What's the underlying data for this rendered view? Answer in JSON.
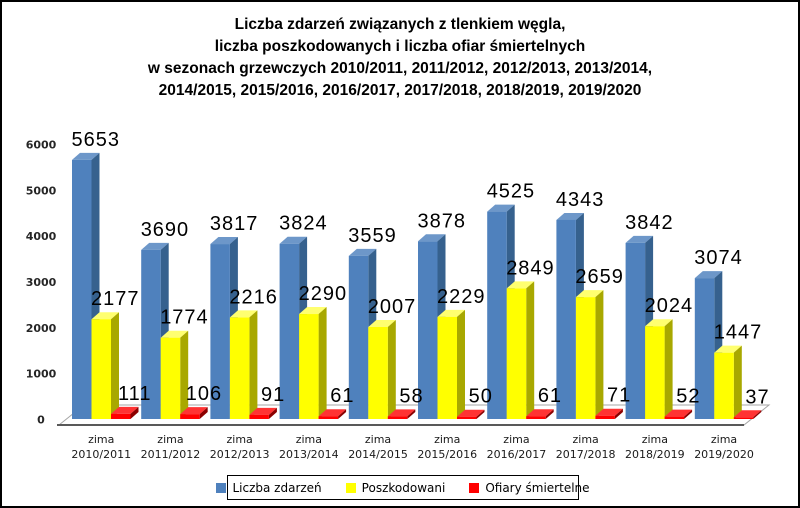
{
  "frame": {
    "background": "#FFFFFF",
    "border_color": "#000000"
  },
  "title": {
    "lines": [
      "Liczba zdarzeń związanych z tlenkiem węgla,",
      "liczba poszkodowanych i liczba ofiar śmiertelnych",
      "w sezonach grzewczych 2010/2011, 2011/2012, 2012/2013, 2013/2014,",
      "2014/2015, 2015/2016, 2016/2017, 2017/2018, 2018/2019, 2019/2020"
    ]
  },
  "chart_data": {
    "type": "bar",
    "style": "3d-clustered-column",
    "title": "Liczba zdarzeń związanych z tlenkiem węgla, liczba poszkodowanych i liczba ofiar śmiertelnych w sezonach grzewczych 2010/2011, 2011/2012, 2012/2013, 2013/2014, 2014/2015, 2015/2016, 2016/2017, 2017/2018, 2018/2019, 2019/2020",
    "categories_prefix": "zima",
    "categories": [
      "2010/2011",
      "2011/2012",
      "2012/2013",
      "2013/2014",
      "2014/2015",
      "2015/2016",
      "2016/2017",
      "2017/2018",
      "2018/2019",
      "2019/2020"
    ],
    "series": [
      {
        "key": "liczba-zdarzen",
        "name": "Liczba zdarzeń",
        "color": "#4F81BD",
        "color_top": "#6D97C9",
        "color_side": "#36618E",
        "values": [
          5653,
          3690,
          3817,
          3824,
          3559,
          3878,
          4525,
          4343,
          3842,
          3074
        ]
      },
      {
        "key": "poszkodowani",
        "name": "Poszkodowani",
        "color": "#FFFF00",
        "color_top": "#FFFF70",
        "color_side": "#A8A800",
        "values": [
          2177,
          1774,
          2216,
          2290,
          2007,
          2229,
          2849,
          2659,
          2024,
          1447
        ]
      },
      {
        "key": "ofiary-smiertelne",
        "name": "Ofiary śmiertelne",
        "color": "#FF0000",
        "color_top": "#FF3333",
        "color_side": "#8C0000",
        "values": [
          111,
          106,
          91,
          61,
          58,
          50,
          61,
          71,
          52,
          37
        ]
      }
    ],
    "xlabel": "",
    "ylabel": "",
    "ylim": [
      0,
      6000
    ],
    "yticks": [
      0,
      1000,
      2000,
      3000,
      4000,
      5000,
      6000
    ],
    "grid": false,
    "data_labels": true,
    "legend_position": "bottom",
    "axis_line_color": "#595959",
    "floor_edge_color": "#A6A6A6"
  }
}
